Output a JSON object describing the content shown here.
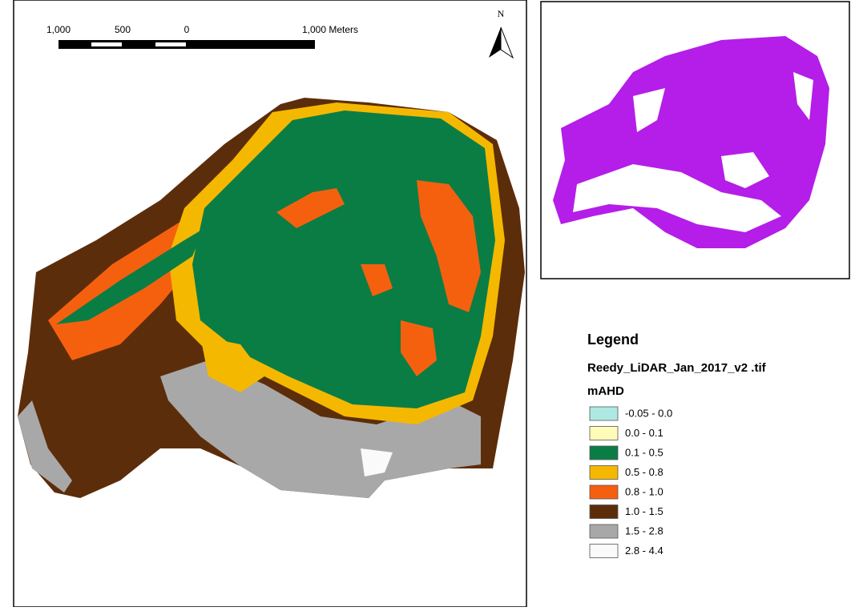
{
  "scale_bar": {
    "labels": [
      "1,000",
      "500",
      "0",
      "1,000 Meters"
    ]
  },
  "north_arrow": {
    "label": "N"
  },
  "legend": {
    "title": "Legend",
    "layer": "Reedy_LiDAR_Jan_2017_v2 .tif",
    "units": "mAHD",
    "classes": [
      {
        "label": "-0.05 - 0.0",
        "color": "#aee8e3"
      },
      {
        "label": "0.0 - 0.1",
        "color": "#fffbb8"
      },
      {
        "label": "0.1 - 0.5",
        "color": "#0a7d45"
      },
      {
        "label": "0.5 - 0.8",
        "color": "#f5b800"
      },
      {
        "label": "0.8 - 1.0",
        "color": "#f5600f"
      },
      {
        "label": "1.0 - 1.5",
        "color": "#5c2d0a"
      },
      {
        "label": "1.5 - 2.8",
        "color": "#a8a8a8"
      },
      {
        "label": "2.8 - 4.4",
        "color": "#fafafa"
      }
    ]
  }
}
